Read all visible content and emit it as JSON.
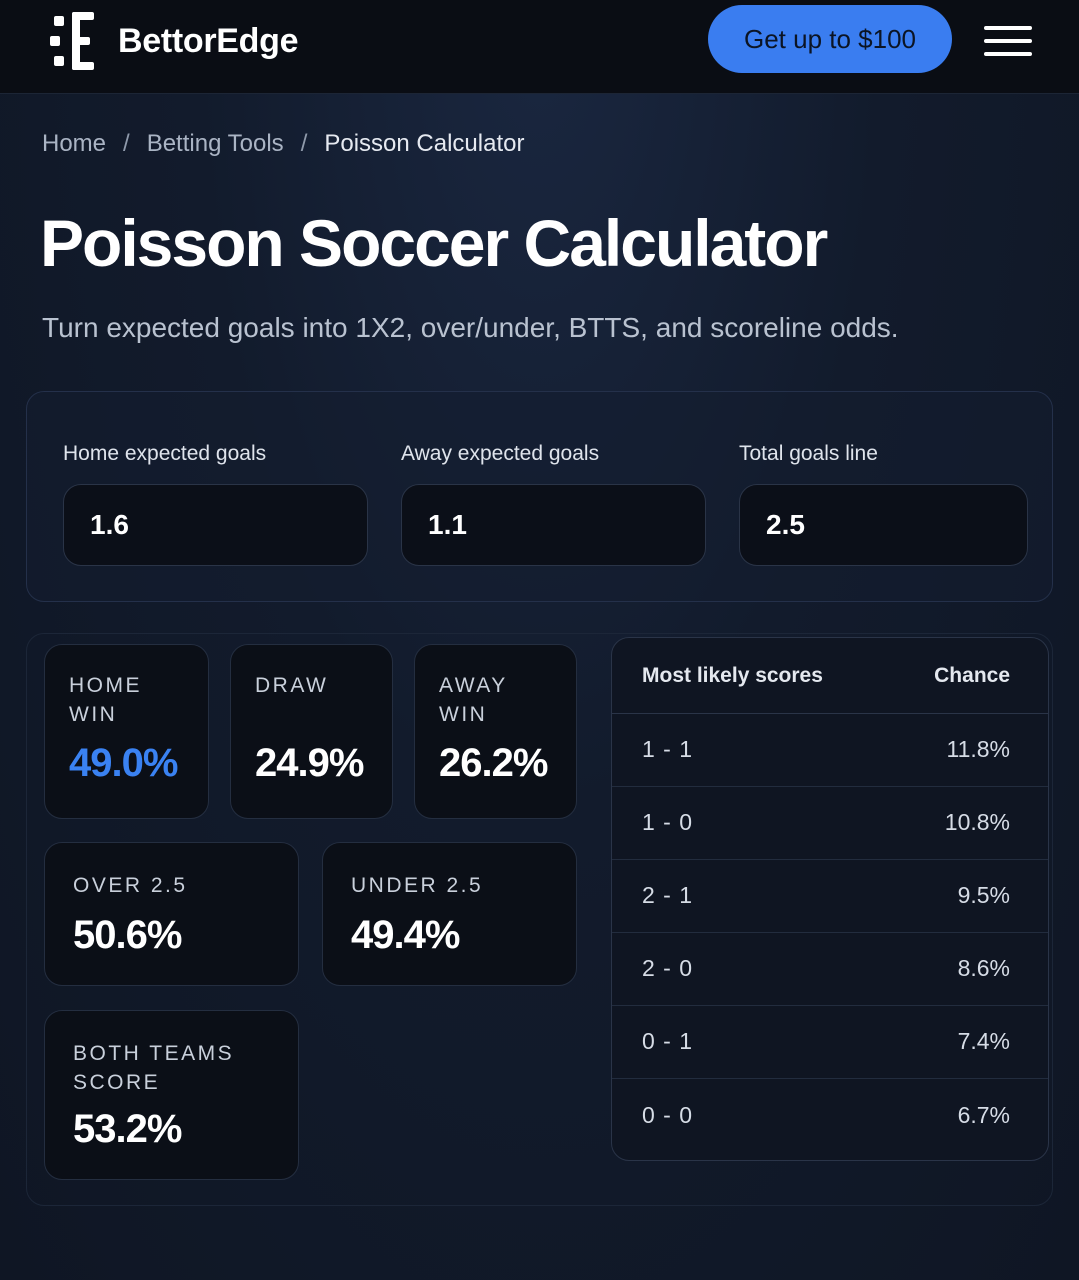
{
  "header": {
    "brand": "BettorEdge",
    "cta_label": "Get up to $100",
    "menu_icon": "hamburger-menu-icon"
  },
  "breadcrumb": [
    {
      "label": "Home"
    },
    {
      "label": "Betting Tools"
    },
    {
      "label": "Poisson Calculator"
    }
  ],
  "breadcrumb_separator": "/",
  "page": {
    "title": "Poisson Soccer Calculator",
    "subtitle": "Turn expected goals into 1X2, over/under, BTTS, and scoreline odds."
  },
  "inputs": [
    {
      "label": "Home expected goals",
      "value": "1.6"
    },
    {
      "label": "Away expected goals",
      "value": "1.1"
    },
    {
      "label": "Total goals line",
      "value": "2.5"
    }
  ],
  "outcomes": {
    "home_win": {
      "label": "HOME WIN",
      "value": "49.0%"
    },
    "draw": {
      "label": "DRAW",
      "value": "24.9%"
    },
    "away_win": {
      "label": "AWAY WIN",
      "value": "26.2%"
    },
    "over": {
      "label": "OVER 2.5",
      "value": "50.6%"
    },
    "under": {
      "label": "UNDER 2.5",
      "value": "49.4%"
    },
    "btts": {
      "label": "BOTH TEAMS SCORE",
      "value": "53.2%"
    }
  },
  "scores_table": {
    "col_score": "Most likely scores",
    "col_chance": "Chance",
    "rows": [
      {
        "score": "1 - 1",
        "chance": "11.8%"
      },
      {
        "score": "1 - 0",
        "chance": "10.8%"
      },
      {
        "score": "2 - 1",
        "chance": "9.5%"
      },
      {
        "score": "2 - 0",
        "chance": "8.6%"
      },
      {
        "score": "0 - 1",
        "chance": "7.4%"
      },
      {
        "score": "0 - 0",
        "chance": "6.7%"
      }
    ]
  },
  "colors": {
    "accent": "#3a7df0",
    "background": "#121b2c",
    "card": "#0b0f17"
  }
}
